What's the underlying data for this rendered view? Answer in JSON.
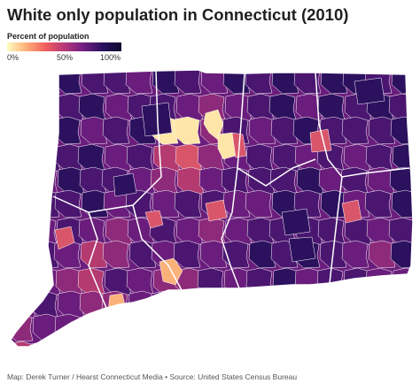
{
  "title": "White only population in Connecticut (2010)",
  "legend": {
    "title": "Percent of population",
    "ticks": [
      "0%",
      "50%",
      "100%"
    ],
    "colors": [
      "#fcfdbf",
      "#feb078",
      "#f1605d",
      "#b73779",
      "#721f81",
      "#2c115f"
    ]
  },
  "source": "Map: Derek Turner / Hearst Connecticut Media • Source: United States Census Bureau",
  "map_colors": {
    "dark": "#2c115f",
    "deep_purple": "#4a1670",
    "purple": "#6a1d7c",
    "magenta": "#8e2a7a",
    "pink": "#b43a70",
    "rose": "#d9566a",
    "orange": "#f07f5e",
    "light_orange": "#fbb27a",
    "pale": "#fde6a8",
    "boundary": "#ffffff"
  }
}
